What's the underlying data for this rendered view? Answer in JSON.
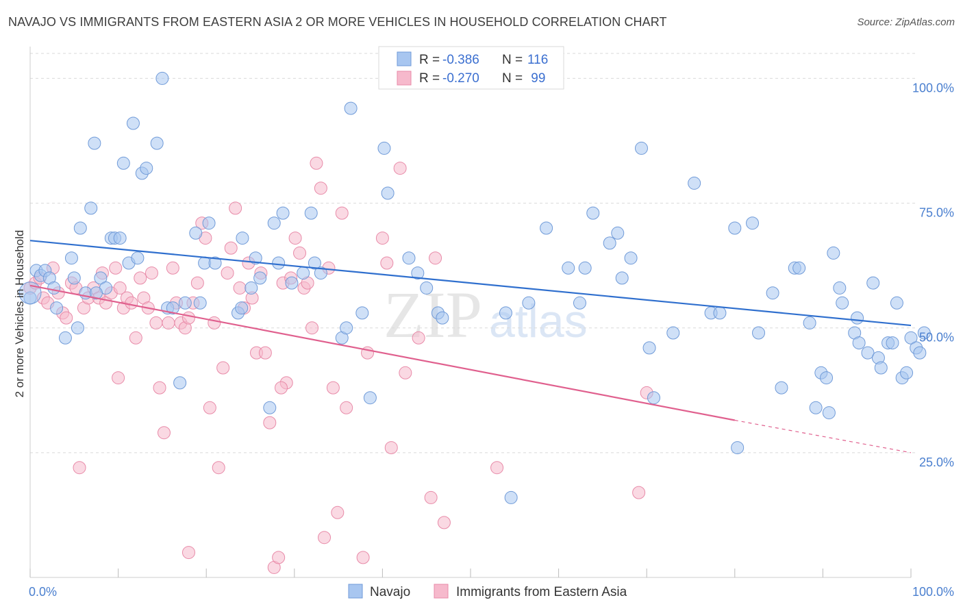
{
  "title": "NAVAJO VS IMMIGRANTS FROM EASTERN ASIA 2 OR MORE VEHICLES IN HOUSEHOLD CORRELATION CHART",
  "source": "Source: ZipAtlas.com",
  "watermark": {
    "zip": "ZIP",
    "atlas": "atlas"
  },
  "colors": {
    "navajo_fill": "#a8c6f0",
    "navajo_stroke": "#6f9ad8",
    "navajo_line": "#2f6fce",
    "imm_fill": "#f6b9cc",
    "imm_stroke": "#e88aa8",
    "imm_line": "#e0608e",
    "grid": "#d9d9d9",
    "axis_text": "#4a7fcf"
  },
  "legend": {
    "rows": [
      {
        "r_label": "R = ",
        "r_value": "-0.386",
        "n_label": "N = ",
        "n_value": "116"
      },
      {
        "r_label": "R = ",
        "r_value": "-0.270",
        "n_label": "N = ",
        "n_value": " 99"
      }
    ]
  },
  "chart_data": {
    "type": "scatter",
    "title": "NAVAJO VS IMMIGRANTS FROM EASTERN ASIA 2 OR MORE VEHICLES IN HOUSEHOLD CORRELATION CHART",
    "xlabel": "",
    "ylabel": "2 or more Vehicles in Household",
    "xlim": [
      0,
      100
    ],
    "ylim": [
      0,
      105
    ],
    "x_tick_labels": [
      "0.0%",
      "100.0%"
    ],
    "y_tick_labels": [
      "25.0%",
      "50.0%",
      "75.0%",
      "100.0%"
    ],
    "y_ticks": [
      25,
      50,
      75,
      100
    ],
    "grid": true,
    "legend_position": "top-center",
    "series": [
      {
        "name": "Navajo",
        "r": -0.386,
        "n": 116,
        "trend": {
          "x": [
            0,
            100
          ],
          "y": [
            67.5,
            50.5
          ],
          "extrapolated_to": 100
        },
        "points": [
          [
            0,
            56
          ],
          [
            0.7,
            61.5
          ],
          [
            1.2,
            60.5
          ],
          [
            1.7,
            61.5
          ],
          [
            2.2,
            60
          ],
          [
            2.7,
            58
          ],
          [
            3,
            54
          ],
          [
            4,
            48
          ],
          [
            4.7,
            64
          ],
          [
            5.4,
            50
          ],
          [
            5.7,
            70
          ],
          [
            6.3,
            57
          ],
          [
            6.9,
            74
          ],
          [
            7.3,
            87
          ],
          [
            8,
            60
          ],
          [
            8.6,
            58
          ],
          [
            9.2,
            68
          ],
          [
            9.6,
            68
          ],
          [
            10.2,
            68
          ],
          [
            10.6,
            83
          ],
          [
            11.2,
            63
          ],
          [
            11.7,
            91
          ],
          [
            12.2,
            64
          ],
          [
            12.7,
            81
          ],
          [
            13.2,
            82
          ],
          [
            14.4,
            87
          ],
          [
            15,
            100
          ],
          [
            15.6,
            54
          ],
          [
            16.2,
            54
          ],
          [
            17,
            39
          ],
          [
            17.6,
            55
          ],
          [
            18.8,
            69
          ],
          [
            19.3,
            55
          ],
          [
            19.8,
            63
          ],
          [
            20.3,
            71
          ],
          [
            21,
            63
          ],
          [
            23.6,
            53
          ],
          [
            24.1,
            68
          ],
          [
            25.1,
            58
          ],
          [
            25.6,
            64
          ],
          [
            26.1,
            60
          ],
          [
            27.2,
            34
          ],
          [
            27.7,
            71
          ],
          [
            28.2,
            63
          ],
          [
            28.7,
            73
          ],
          [
            29.7,
            59
          ],
          [
            31,
            61
          ],
          [
            31.9,
            73
          ],
          [
            32.3,
            63
          ],
          [
            33,
            61
          ],
          [
            35.4,
            48
          ],
          [
            35.9,
            50
          ],
          [
            36.4,
            94
          ],
          [
            37.7,
            53
          ],
          [
            38.6,
            36
          ],
          [
            40.2,
            86
          ],
          [
            40.6,
            77
          ],
          [
            43,
            64
          ],
          [
            45,
            58
          ],
          [
            46.3,
            53
          ],
          [
            46.8,
            52
          ],
          [
            54,
            53
          ],
          [
            54.6,
            16
          ],
          [
            56.6,
            55
          ],
          [
            58.6,
            70
          ],
          [
            61.1,
            62
          ],
          [
            62.4,
            55
          ],
          [
            63.9,
            73
          ],
          [
            65.8,
            67
          ],
          [
            66.7,
            69
          ],
          [
            67.2,
            60
          ],
          [
            68.2,
            64
          ],
          [
            69.4,
            86
          ],
          [
            70.3,
            46
          ],
          [
            70.8,
            36
          ],
          [
            73,
            49
          ],
          [
            75.4,
            79
          ],
          [
            77.3,
            53
          ],
          [
            78.3,
            53
          ],
          [
            80,
            70
          ],
          [
            80.3,
            26
          ],
          [
            82,
            71
          ],
          [
            82.7,
            49
          ],
          [
            84.3,
            57
          ],
          [
            85.3,
            38
          ],
          [
            86.8,
            62
          ],
          [
            87.3,
            62
          ],
          [
            88.5,
            51
          ],
          [
            89.2,
            34
          ],
          [
            89.8,
            41
          ],
          [
            90.4,
            40
          ],
          [
            90.7,
            33
          ],
          [
            91.2,
            65
          ],
          [
            91.9,
            58
          ],
          [
            92.2,
            55
          ],
          [
            93.6,
            49
          ],
          [
            93.9,
            52
          ],
          [
            94.1,
            47
          ],
          [
            95.1,
            45
          ],
          [
            95.7,
            59
          ],
          [
            96.3,
            44
          ],
          [
            96.6,
            42
          ],
          [
            97.4,
            47
          ],
          [
            97.9,
            47
          ],
          [
            98.4,
            55
          ],
          [
            99,
            40
          ],
          [
            99.5,
            41
          ],
          [
            100,
            48
          ],
          [
            100.6,
            46
          ],
          [
            101,
            45
          ],
          [
            101.5,
            49
          ],
          [
            63,
            62
          ],
          [
            24,
            54
          ],
          [
            7.5,
            57
          ],
          [
            44,
            61
          ],
          [
            5,
            60
          ],
          [
            57.2,
            100
          ]
        ]
      },
      {
        "name": "Immigrants from Eastern Asia",
        "r": -0.27,
        "n": 99,
        "trend": {
          "x": [
            0,
            80
          ],
          "y": [
            58.5,
            31.5
          ],
          "extrapolated_to": 100,
          "y_at_100": 25
        },
        "points": [
          [
            0,
            58
          ],
          [
            0.6,
            59
          ],
          [
            1.1,
            60
          ],
          [
            1.5,
            56
          ],
          [
            2,
            55
          ],
          [
            2.6,
            62
          ],
          [
            3.2,
            57
          ],
          [
            3.7,
            53
          ],
          [
            4.1,
            52
          ],
          [
            4.7,
            59
          ],
          [
            5.2,
            58
          ],
          [
            5.6,
            22
          ],
          [
            6.1,
            54
          ],
          [
            6.6,
            56
          ],
          [
            7.2,
            58
          ],
          [
            7.8,
            56
          ],
          [
            8.2,
            61
          ],
          [
            8.6,
            55
          ],
          [
            9.2,
            57
          ],
          [
            9.7,
            62
          ],
          [
            10.2,
            58
          ],
          [
            10.6,
            54
          ],
          [
            11,
            56
          ],
          [
            11.5,
            55
          ],
          [
            12,
            48
          ],
          [
            12.5,
            60
          ],
          [
            12.9,
            56
          ],
          [
            13.4,
            54
          ],
          [
            13.8,
            61
          ],
          [
            14.3,
            51
          ],
          [
            14.7,
            38
          ],
          [
            15.2,
            29
          ],
          [
            15.7,
            51
          ],
          [
            16.2,
            62
          ],
          [
            16.6,
            55
          ],
          [
            17.1,
            51
          ],
          [
            17.6,
            50
          ],
          [
            18,
            52
          ],
          [
            18.5,
            55
          ],
          [
            19,
            59
          ],
          [
            19.5,
            71
          ],
          [
            19.9,
            68
          ],
          [
            20.4,
            34
          ],
          [
            20.9,
            51
          ],
          [
            21.4,
            22
          ],
          [
            21.9,
            42
          ],
          [
            22.4,
            61
          ],
          [
            22.8,
            66
          ],
          [
            23.3,
            74
          ],
          [
            23.8,
            58
          ],
          [
            24.3,
            54
          ],
          [
            24.8,
            63
          ],
          [
            25.2,
            56
          ],
          [
            25.7,
            45
          ],
          [
            26.2,
            61
          ],
          [
            26.7,
            45
          ],
          [
            27.2,
            31
          ],
          [
            27.7,
            2
          ],
          [
            28.2,
            4
          ],
          [
            28.7,
            59
          ],
          [
            29.1,
            39
          ],
          [
            29.6,
            60
          ],
          [
            30.1,
            68
          ],
          [
            30.6,
            65
          ],
          [
            31.1,
            58
          ],
          [
            31.5,
            59
          ],
          [
            32,
            50
          ],
          [
            32.5,
            83
          ],
          [
            33,
            78
          ],
          [
            33.4,
            8
          ],
          [
            33.9,
            62
          ],
          [
            34.4,
            38
          ],
          [
            34.9,
            13
          ],
          [
            35.4,
            73
          ],
          [
            35.9,
            34
          ],
          [
            37.8,
            4
          ],
          [
            38.3,
            45
          ],
          [
            40,
            68
          ],
          [
            40.5,
            63
          ],
          [
            41,
            26
          ],
          [
            42,
            82
          ],
          [
            42.6,
            41
          ],
          [
            44.1,
            48
          ],
          [
            45.5,
            16
          ],
          [
            46,
            64
          ],
          [
            47,
            11
          ],
          [
            53,
            22
          ],
          [
            69.1,
            17
          ],
          [
            70,
            37
          ],
          [
            18,
            5
          ],
          [
            10,
            40
          ],
          [
            28.5,
            38
          ]
        ]
      }
    ]
  },
  "bottom_legend": [
    {
      "label": "Navajo"
    },
    {
      "label": "Immigrants from Eastern Asia"
    }
  ]
}
